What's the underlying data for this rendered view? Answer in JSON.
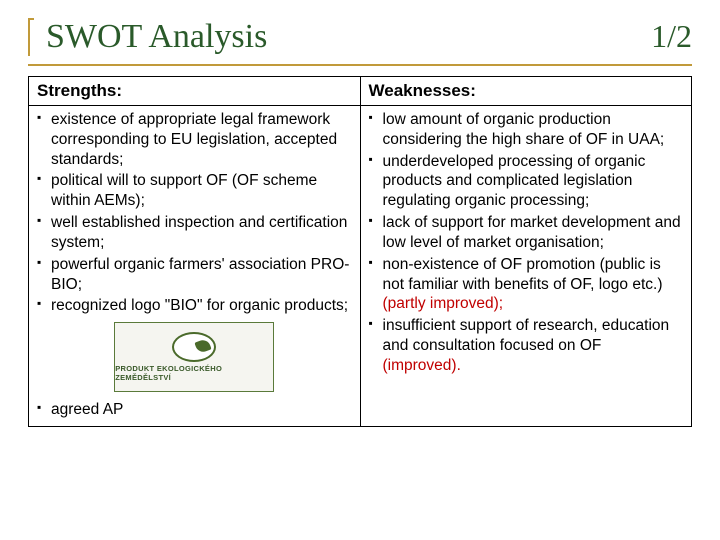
{
  "title": "SWOT Analysis",
  "page": "1/2",
  "colors": {
    "title_color": "#2a5a2a",
    "accent_color": "#c19a3a",
    "improved_color": "#c00000",
    "border_color": "#000000",
    "background": "#ffffff"
  },
  "headers": {
    "strengths": "Strengths:",
    "weaknesses": "Weaknesses:"
  },
  "strengths": [
    "existence of appropriate legal framework corresponding to EU legislation, accepted standards;",
    "political will to support OF (OF scheme within AEMs);",
    "well established inspection and certification system;",
    "powerful organic farmers' association PRO-BIO;",
    "recognized logo \"BIO\" for organic products;",
    "agreed AP"
  ],
  "weaknesses": [
    {
      "text": "low amount of organic production considering the high share of OF in UAA;",
      "note": ""
    },
    {
      "text": "underdeveloped processing of organic products and complicated legislation regulating organic processing;",
      "note": ""
    },
    {
      "text": "lack of support for market development and low level of market organisation;",
      "note": ""
    },
    {
      "text": "non-existence of OF promotion (public is not familiar with benefits of OF, logo etc.) ",
      "note": "(partly improved);"
    },
    {
      "text": "insufficient support of research, education and consultation focused on OF ",
      "note": "(improved)."
    }
  ],
  "logo_caption": "PRODUKT EKOLOGICKÉHO ZEMĚDĚLSTVÍ"
}
